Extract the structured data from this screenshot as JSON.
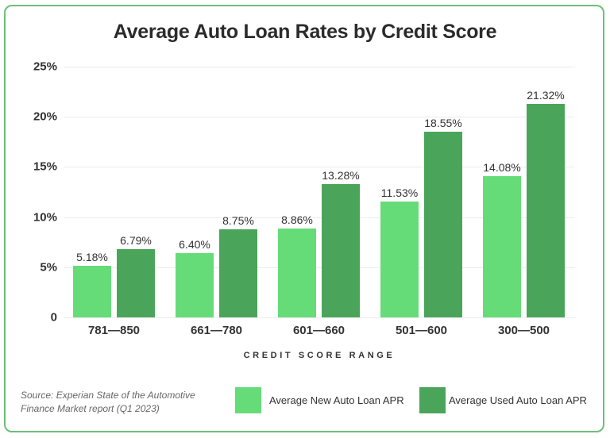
{
  "header": {
    "title": "Average Auto Loan Rates by Credit Score"
  },
  "chart_data": {
    "type": "bar",
    "title": "Average Auto Loan Rates by Credit Score",
    "xlabel": "CREDIT SCORE RANGE",
    "ylabel": "",
    "categories": [
      "781—850",
      "661—780",
      "601—660",
      "501—600",
      "300—500"
    ],
    "series": [
      {
        "name": "Average New Auto Loan APR",
        "color": "#66dc78",
        "values": [
          5.18,
          6.4,
          8.86,
          11.53,
          14.08
        ],
        "labels": [
          "5.18%",
          "6.40%",
          "8.86%",
          "11.53%",
          "14.08%"
        ]
      },
      {
        "name": "Average Used Auto Loan APR",
        "color": "#4aa55a",
        "values": [
          6.79,
          8.75,
          13.28,
          18.55,
          21.32
        ],
        "labels": [
          "6.79%",
          "8.75%",
          "13.28%",
          "18.55%",
          "21.32%"
        ]
      }
    ],
    "yticks": [
      {
        "value": 0,
        "label": "0"
      },
      {
        "value": 5,
        "label": "5%"
      },
      {
        "value": 10,
        "label": "10%"
      },
      {
        "value": 15,
        "label": "15%"
      },
      {
        "value": 20,
        "label": "20%"
      },
      {
        "value": 25,
        "label": "25%"
      }
    ],
    "ylim": [
      0,
      25
    ],
    "grid": true,
    "legend_position": "bottom-right"
  },
  "legend": {
    "new_label": "Average New Auto Loan APR",
    "used_label": "Average Used Auto Loan APR"
  },
  "footer": {
    "source_line1": "Source: Experian State of the Automotive",
    "source_line2": "Finance Market report (Q1 2023)"
  }
}
